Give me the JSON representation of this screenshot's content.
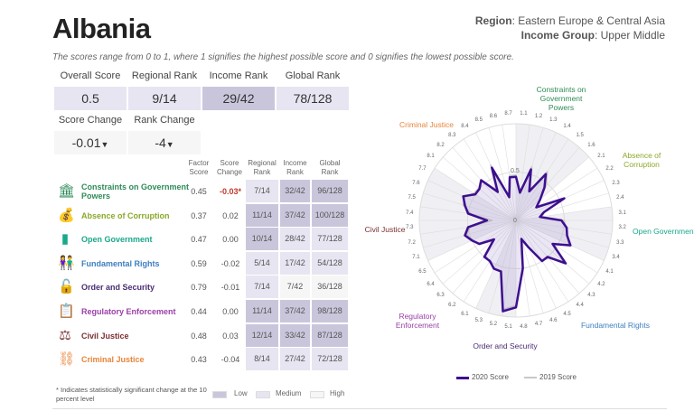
{
  "country": "Albania",
  "region": {
    "label": "Region",
    "value": "Eastern Europe & Central Asia"
  },
  "income_group": {
    "label": "Income Group",
    "value": "Upper Middle"
  },
  "subtitle": "The scores range from 0 to 1, where 1 signifies the highest possible score and 0 signifies the lowest possible score.",
  "summary": [
    {
      "label": "Overall Score",
      "value": "0.5",
      "tier": "medium"
    },
    {
      "label": "Regional Rank",
      "value": "9/14",
      "tier": "medium"
    },
    {
      "label": "Income Rank",
      "value": "29/42",
      "tier": "low"
    },
    {
      "label": "Global Rank",
      "value": "78/128",
      "tier": "medium"
    }
  ],
  "changes": [
    {
      "label": "Score Change",
      "value": "-0.01",
      "arrow": "▼"
    },
    {
      "label": "Rank Change",
      "value": "-4",
      "arrow": "▼"
    }
  ],
  "table_headers": [
    "Factor Score",
    "Score Change",
    "Regional Rank",
    "Income Rank",
    "Global Rank"
  ],
  "factors": [
    {
      "name": "Constraints on Government Powers",
      "icon": "building-icon",
      "glyph": "🏛",
      "color": "#2e8b57",
      "score": "0.45",
      "change": "-0.03*",
      "significant": true,
      "regional": "7/14",
      "income": "32/42",
      "global": "96/128",
      "tiers": [
        "medium",
        "low",
        "low"
      ]
    },
    {
      "name": "Absence of Corruption",
      "icon": "money-bag-icon",
      "glyph": "💰",
      "color": "#8aa82a",
      "score": "0.37",
      "change": "0.02",
      "significant": false,
      "regional": "11/14",
      "income": "37/42",
      "global": "100/128",
      "tiers": [
        "low",
        "low",
        "low"
      ]
    },
    {
      "name": "Open Government",
      "icon": "door-icon",
      "glyph": "▮",
      "color": "#1aa88a",
      "score": "0.47",
      "change": "0.00",
      "significant": false,
      "regional": "10/14",
      "income": "28/42",
      "global": "77/128",
      "tiers": [
        "low",
        "medium",
        "medium"
      ]
    },
    {
      "name": "Fundamental Rights",
      "icon": "people-icon",
      "glyph": "👫",
      "color": "#3d7fc1",
      "score": "0.59",
      "change": "-0.02",
      "significant": false,
      "regional": "5/14",
      "income": "17/42",
      "global": "54/128",
      "tiers": [
        "medium",
        "medium",
        "medium"
      ]
    },
    {
      "name": "Order and Security",
      "icon": "lock-icon",
      "glyph": "🔓",
      "color": "#4a2d73",
      "score": "0.79",
      "change": "-0.01",
      "significant": false,
      "regional": "7/14",
      "income": "7/42",
      "global": "36/128",
      "tiers": [
        "medium",
        "high",
        "high"
      ]
    },
    {
      "name": "Regulatory Enforcement",
      "icon": "clipboard-icon",
      "glyph": "📋",
      "color": "#9b3fa8",
      "score": "0.44",
      "change": "0.00",
      "significant": false,
      "regional": "11/14",
      "income": "37/42",
      "global": "98/128",
      "tiers": [
        "low",
        "low",
        "low"
      ]
    },
    {
      "name": "Civil Justice",
      "icon": "scales-icon",
      "glyph": "⚖",
      "color": "#7a2e2e",
      "score": "0.48",
      "change": "0.03",
      "significant": false,
      "regional": "12/14",
      "income": "33/42",
      "global": "87/128",
      "tiers": [
        "low",
        "low",
        "low"
      ]
    },
    {
      "name": "Criminal Justice",
      "icon": "handcuffs-icon",
      "glyph": "⛓",
      "color": "#e8853a",
      "score": "0.43",
      "change": "-0.04",
      "significant": false,
      "regional": "8/14",
      "income": "27/42",
      "global": "72/128",
      "tiers": [
        "medium",
        "medium",
        "medium"
      ]
    }
  ],
  "footnote": "* Indicates statistically significant change at the 10 percent level",
  "tier_legend": [
    {
      "tier": "low",
      "label": "Low"
    },
    {
      "tier": "medium",
      "label": "Medium"
    },
    {
      "tier": "high",
      "label": "High"
    }
  ],
  "chart_data": {
    "type": "radar",
    "range": [
      0,
      1
    ],
    "ring_labels": [
      "0",
      "0.5"
    ],
    "axes": [
      "1.1",
      "1.2",
      "1.3",
      "1.4",
      "1.5",
      "1.6",
      "2.1",
      "2.2",
      "2.3",
      "2.4",
      "3.1",
      "3.2",
      "3.3",
      "3.4",
      "4.1",
      "4.2",
      "4.3",
      "4.4",
      "4.5",
      "4.6",
      "4.7",
      "4.8",
      "5.1",
      "5.2",
      "5.3",
      "6.1",
      "6.2",
      "6.3",
      "6.4",
      "6.5",
      "7.1",
      "7.2",
      "7.3",
      "7.4",
      "7.5",
      "7.6",
      "7.7",
      "8.1",
      "8.2",
      "8.3",
      "8.4",
      "8.5",
      "8.6",
      "8.7"
    ],
    "factor_labels": [
      {
        "text": "Constraints on Government Powers",
        "color": "#2e8b57"
      },
      {
        "text": "Absence of Corruption",
        "color": "#8aa82a"
      },
      {
        "text": "Open Government",
        "color": "#1aa88a"
      },
      {
        "text": "Fundamental Rights",
        "color": "#3d7fc1"
      },
      {
        "text": "Order and Security",
        "color": "#4a2d73"
      },
      {
        "text": "Regulatory Enforcement",
        "color": "#9b3fa8"
      },
      {
        "text": "Civil Justice",
        "color": "#7a2e2e"
      },
      {
        "text": "Criminal Justice",
        "color": "#e8853a"
      }
    ],
    "series": [
      {
        "name": "2020 Score",
        "color": "#3d0f8f",
        "values": [
          0.45,
          0.29,
          0.55,
          0.33,
          0.57,
          0.45,
          0.33,
          0.25,
          0.55,
          0.3,
          0.25,
          0.47,
          0.53,
          0.55,
          0.62,
          0.45,
          0.68,
          0.5,
          0.5,
          0.3,
          0.2,
          0.5,
          0.9,
          0.95,
          0.55,
          0.55,
          0.5,
          0.5,
          0.3,
          0.45,
          0.5,
          0.55,
          0.5,
          0.3,
          0.5,
          0.55,
          0.6,
          0.5,
          0.5,
          0.55,
          0.35,
          0.6,
          0.25,
          0.45
        ]
      },
      {
        "name": "2019 Score",
        "color": "#c8c8c8",
        "values": [
          0.47,
          0.3,
          0.58,
          0.35,
          0.6,
          0.48,
          0.32,
          0.26,
          0.53,
          0.31,
          0.27,
          0.5,
          0.52,
          0.55,
          0.6,
          0.46,
          0.66,
          0.52,
          0.49,
          0.31,
          0.22,
          0.5,
          0.88,
          0.93,
          0.56,
          0.54,
          0.51,
          0.48,
          0.32,
          0.46,
          0.49,
          0.53,
          0.48,
          0.25,
          0.47,
          0.57,
          0.58,
          0.52,
          0.51,
          0.56,
          0.38,
          0.63,
          0.27,
          0.47
        ]
      }
    ]
  }
}
